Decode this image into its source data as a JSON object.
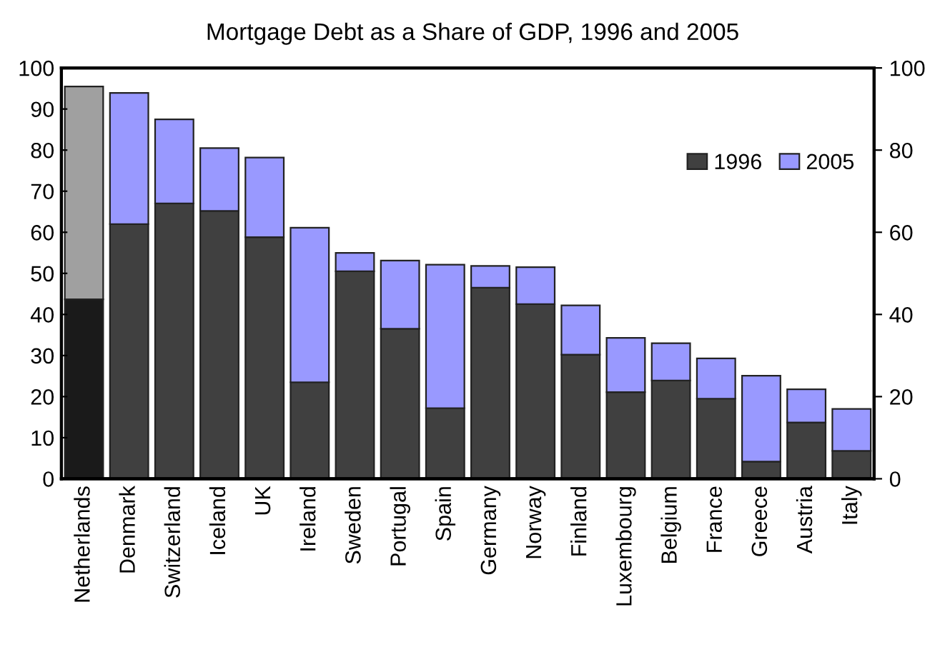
{
  "chart_data": {
    "type": "bar",
    "title": "Mortgage Debt as a Share of GDP, 1996 and 2005",
    "categories": [
      "Netherlands",
      "Denmark",
      "Switzerland",
      "Iceland",
      "UK",
      "Ireland",
      "Sweden",
      "Portugal",
      "Spain",
      "Germany",
      "Norway",
      "Finland",
      "Luxembourg",
      "Belgium",
      "France",
      "Greece",
      "Austria",
      "Italy"
    ],
    "stacked": true,
    "series": [
      {
        "name": "1996",
        "color": "#404040",
        "colors": [
          "#1a1a1a",
          "#404040",
          "#404040",
          "#404040",
          "#404040",
          "#404040",
          "#404040",
          "#404040",
          "#404040",
          "#404040",
          "#404040",
          "#404040",
          "#404040",
          "#404040",
          "#404040",
          "#404040",
          "#404040",
          "#404040"
        ],
        "values": [
          43.7,
          62,
          67,
          65.2,
          58.8,
          23.5,
          50.5,
          36.5,
          17.2,
          46.5,
          42.5,
          30.2,
          21.1,
          23.9,
          19.5,
          4.2,
          13.7,
          6.8
        ]
      },
      {
        "name": "2005",
        "color": "#9999ff",
        "colors": [
          "#a0a0a0",
          "#9999ff",
          "#9999ff",
          "#9999ff",
          "#9999ff",
          "#9999ff",
          "#9999ff",
          "#9999ff",
          "#9999ff",
          "#9999ff",
          "#9999ff",
          "#9999ff",
          "#9999ff",
          "#9999ff",
          "#9999ff",
          "#9999ff",
          "#9999ff",
          "#9999ff"
        ],
        "values": [
          51.8,
          31.9,
          20.5,
          15.3,
          19.4,
          37.6,
          4.5,
          16.6,
          34.9,
          5.3,
          9,
          12,
          13.2,
          9.1,
          9.8,
          20.9,
          8.1,
          10.2
        ]
      }
    ],
    "ylim": [
      0,
      100
    ],
    "yticks": [
      0,
      10,
      20,
      30,
      40,
      50,
      60,
      70,
      80,
      90,
      100
    ],
    "y2lim": [
      0,
      100
    ],
    "y2ticks": [
      0,
      20,
      40,
      60,
      80,
      100
    ],
    "grid": false,
    "legend": "top right"
  }
}
